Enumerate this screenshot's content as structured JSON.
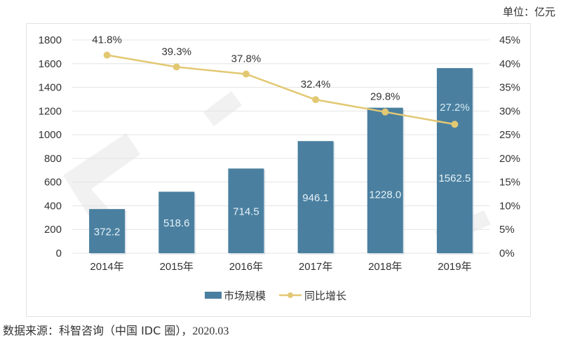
{
  "unit_label": "单位：亿元",
  "source": {
    "prefix": "数据来源：科智咨询（中国 IDC 圈），",
    "date": "2020.03"
  },
  "colors": {
    "bar": "#4a7f9f",
    "line": "#e3c873",
    "grid": "#e4e4e4"
  },
  "chart_data": {
    "type": "bar+line",
    "categories": [
      "2014年",
      "2015年",
      "2016年",
      "2017年",
      "2018年",
      "2019年"
    ],
    "series": [
      {
        "name": "市场规模",
        "type": "bar",
        "axis": "left",
        "values": [
          372.2,
          518.6,
          714.5,
          946.1,
          1228.0,
          1562.5
        ],
        "labels": [
          "372.2",
          "518.6",
          "714.5",
          "946.1",
          "1228.0",
          "1562.5"
        ]
      },
      {
        "name": "同比增长",
        "type": "line",
        "axis": "right",
        "values": [
          41.8,
          39.3,
          37.8,
          32.4,
          29.8,
          27.2
        ],
        "labels": [
          "41.8%",
          "39.3%",
          "37.8%",
          "32.4%",
          "29.8%",
          "27.2%"
        ]
      }
    ],
    "y_left": {
      "ylim": [
        0,
        1800
      ],
      "ticks": [
        "0",
        "200",
        "400",
        "600",
        "800",
        "1000",
        "1200",
        "1400",
        "1600",
        "1800"
      ]
    },
    "y_right": {
      "ylim": [
        0,
        45
      ],
      "ticks": [
        "0%",
        "5%",
        "10%",
        "15%",
        "20%",
        "25%",
        "30%",
        "35%",
        "40%",
        "45%"
      ]
    },
    "grid": true,
    "legend": "bottom-center",
    "legend_entries": [
      "市场规模",
      "同比增长"
    ]
  }
}
